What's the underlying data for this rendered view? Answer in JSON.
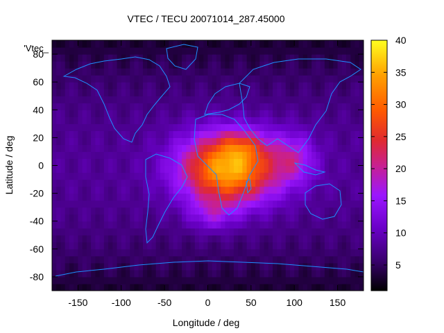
{
  "chart_data": {
    "type": "heatmap",
    "title": "VTEC / TECU 20071014_287.45000",
    "xlabel": "Longitude / deg",
    "ylabel": "Latitude / deg",
    "legend_key": "'Vtec_",
    "xlim": [
      -180,
      180
    ],
    "ylim": [
      -90,
      90
    ],
    "xticks": [
      -150,
      -100,
      -50,
      0,
      50,
      100,
      150
    ],
    "yticks": [
      -80,
      -60,
      -40,
      -20,
      0,
      20,
      40,
      60,
      80
    ],
    "colorbar": {
      "range": [
        1,
        40
      ],
      "ticks": [
        5,
        10,
        15,
        20,
        25,
        30,
        35,
        40
      ],
      "palette": [
        "#000000",
        "#5a00a0",
        "#9b16ff",
        "#d8306a",
        "#ff4000",
        "#ff9a00",
        "#ffff20"
      ]
    },
    "vtec_model": {
      "background_tecu": 8,
      "peaks": [
        {
          "lon": 25,
          "lat": -2,
          "peak_tecu": 28,
          "lon_width": 55,
          "lat_width": 25
        },
        {
          "lon": 40,
          "lat": 14,
          "peak_tecu": 6,
          "lon_width": 25,
          "lat_width": 10
        },
        {
          "lon": 100,
          "lat": 5,
          "peak_tecu": 8,
          "lon_width": 25,
          "lat_width": 18
        },
        {
          "lon": 5,
          "lat": -35,
          "peak_tecu": 6,
          "lon_width": 25,
          "lat_width": 12
        }
      ]
    },
    "coastline_color": "#1e90ff"
  }
}
